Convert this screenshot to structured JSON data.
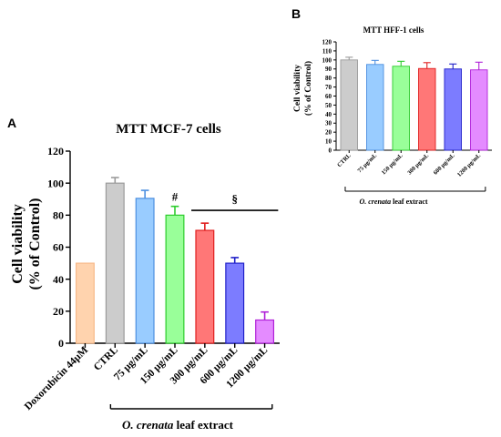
{
  "panels": {
    "a_label": "A",
    "b_label": "B"
  },
  "chart_data": [
    {
      "id": "A",
      "type": "bar",
      "title": "MTT MCF-7 cells",
      "ylabel_line1": "Cell viability",
      "ylabel_line2": "(% of Control)",
      "xlabel": "",
      "group_label_italic": "O. crenata",
      "group_label_rest": " leaf extract",
      "ylim": [
        0,
        120
      ],
      "yticks": [
        "0",
        "20",
        "40",
        "60",
        "80",
        "100",
        "120"
      ],
      "categories": [
        "Doxorubicin 44μM",
        "CTRL",
        "75 μg/mL",
        "150 μg/mL",
        "300 μg/mL",
        "600 μg/mL",
        "1200 μg/mL"
      ],
      "values": [
        50,
        100,
        90.5,
        80,
        70.5,
        50,
        14.5
      ],
      "errors": [
        0,
        3.5,
        5,
        5.5,
        4.5,
        3.5,
        5
      ],
      "colors": [
        "#FFD3AE",
        "#CCCCCC",
        "#99CCFF",
        "#99FF99",
        "#FF7777",
        "#7C7CFF",
        "#E48BFF"
      ],
      "edge_colors": [
        "#F7B98A",
        "#9A9A9A",
        "#4D8FE0",
        "#2DCC2D",
        "#E01F1F",
        "#2020C8",
        "#B020D8"
      ],
      "annotations": [
        {
          "text": "#",
          "category_index": 3
        },
        {
          "text": "§",
          "from_index": 4,
          "to_index": 6
        }
      ]
    },
    {
      "id": "B",
      "type": "bar",
      "title": "MTT HFF-1 cells",
      "ylabel_line1": "Cell viability",
      "ylabel_line2": "(% of Control)",
      "xlabel": "",
      "group_label_italic": "O. crenata",
      "group_label_rest": " leaf extract",
      "ylim": [
        0,
        120
      ],
      "yticks": [
        "0",
        "10",
        "20",
        "30",
        "40",
        "50",
        "60",
        "70",
        "80",
        "90",
        "100",
        "110",
        "120"
      ],
      "categories": [
        "CTRL",
        "75 μg/mL",
        "150 μg/mL",
        "300 μg/mL",
        "600 μg/mL",
        "1200 μg/mL"
      ],
      "values": [
        100,
        95,
        93,
        90.5,
        90,
        89
      ],
      "errors": [
        3,
        4.5,
        5.5,
        6.5,
        5.5,
        8.5
      ],
      "colors": [
        "#CCCCCC",
        "#99CCFF",
        "#99FF99",
        "#FF7777",
        "#7C7CFF",
        "#E48BFF"
      ],
      "edge_colors": [
        "#9A9A9A",
        "#4D8FE0",
        "#2DCC2D",
        "#E01F1F",
        "#2020C8",
        "#B020D8"
      ]
    }
  ]
}
